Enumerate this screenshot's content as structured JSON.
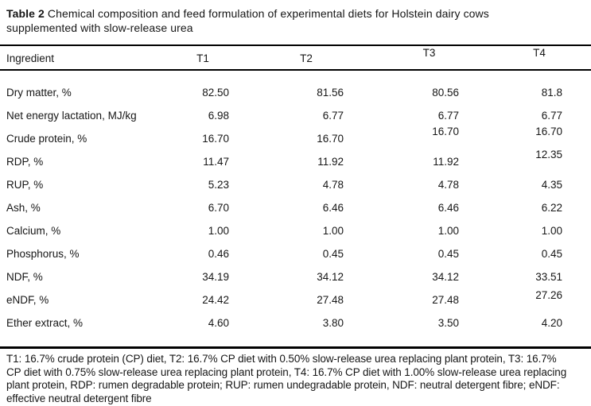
{
  "caption": {
    "label": "Table 2",
    "line1": "Chemical composition and feed formulation of experimental diets for Holstein dairy cows",
    "line2": "supplemented with slow-release urea"
  },
  "table": {
    "columns": [
      "Ingredient",
      "T1",
      "T2",
      "T3",
      "T4"
    ],
    "rows": [
      {
        "label": "Dry matter, %",
        "values": [
          "82.50",
          "81.56",
          "80.56",
          "81.8"
        ]
      },
      {
        "label": "Net energy lactation, MJ/kg",
        "values": [
          "6.98",
          "6.77",
          "6.77",
          "6.77"
        ]
      },
      {
        "label": "Crude protein, %",
        "values": [
          "16.70",
          "16.70",
          "16.70",
          "16.70"
        ]
      },
      {
        "label": "RDP, %",
        "values": [
          "11.47",
          "11.92",
          "11.92",
          "12.35"
        ]
      },
      {
        "label": "RUP, %",
        "values": [
          "5.23",
          "4.78",
          "4.78",
          "4.35"
        ]
      },
      {
        "label": "Ash, %",
        "values": [
          "6.70",
          "6.46",
          "6.46",
          "6.22"
        ]
      },
      {
        "label": "Calcium, %",
        "values": [
          "1.00",
          "1.00",
          "1.00",
          "1.00"
        ]
      },
      {
        "label": "Phosphorus, %",
        "values": [
          "0.46",
          "0.45",
          "0.45",
          "0.45"
        ]
      },
      {
        "label": "NDF, %",
        "values": [
          "34.19",
          "34.12",
          "34.12",
          "33.51"
        ]
      },
      {
        "label": "eNDF, %",
        "values": [
          "24.42",
          "27.48",
          "27.48",
          "27.26"
        ]
      },
      {
        "label": "Ether extract, %",
        "values": [
          "4.60",
          "3.80",
          "3.50",
          "4.20"
        ]
      }
    ]
  },
  "footnote": {
    "lines": [
      "T1: 16.7% crude protein (CP) diet, T2: 16.7% CP diet with 0.50% slow-release urea replacing plant protein, T3: 16.7%",
      "CP diet with 0.75% slow-release urea replacing plant protein, T4: 16.7% CP diet with 1.00% slow-release urea replacing",
      "plant protein, RDP: rumen degradable protein; RUP: rumen undegradable protein, NDF: neutral detergent fibre; eNDF:",
      "effective neutral detergent fibre"
    ]
  },
  "colors": {
    "text": "#161616",
    "rule": "#000000",
    "background": "#ffffff"
  }
}
